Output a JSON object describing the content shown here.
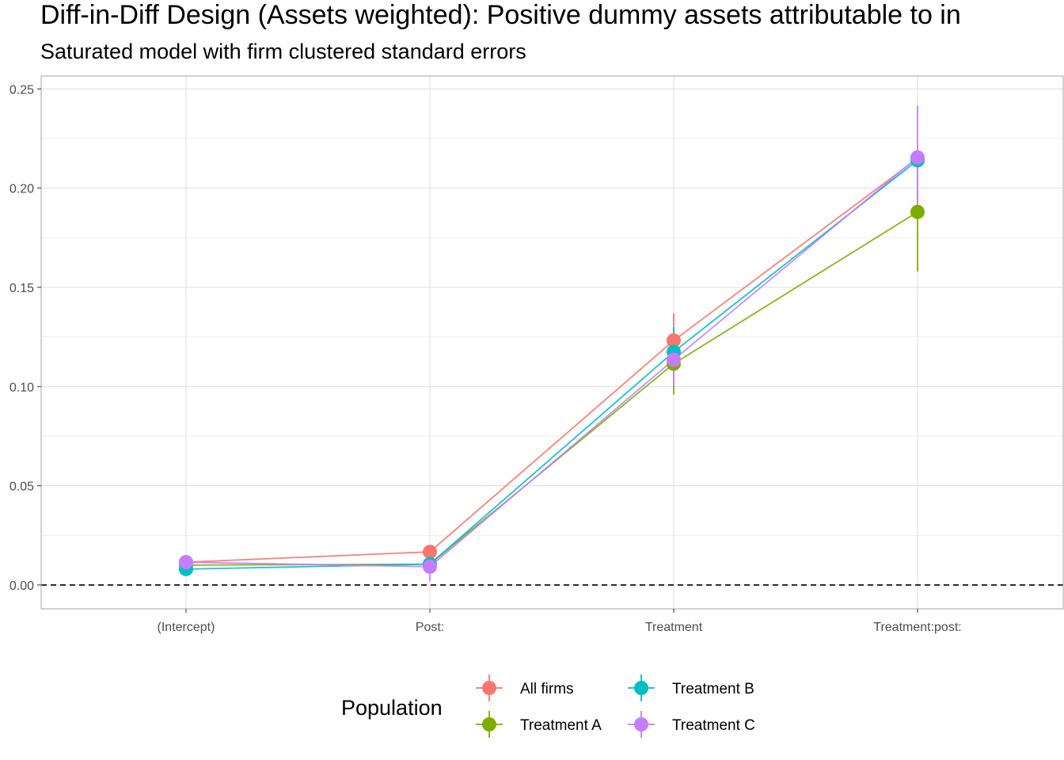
{
  "chart_data": {
    "type": "line",
    "title": "Diff-in-Diff Design (Assets weighted): Positive dummy assets attributable to in",
    "subtitle": "Saturated model with firm clustered standard errors",
    "xlabel": "",
    "ylabel": "",
    "categories": [
      "(Intercept)",
      "Post:",
      "Treatment",
      "Treatment:post:"
    ],
    "ylim": [
      -0.012,
      0.2565
    ],
    "yticks": [
      0.0,
      0.05,
      0.1,
      0.15,
      0.2,
      0.25
    ],
    "ytick_labels": [
      "0.00",
      "0.05",
      "0.10",
      "0.15",
      "0.20",
      "0.25"
    ],
    "reference_line": 0.0,
    "grid": true,
    "legend": {
      "title": "Population",
      "placement": "bottom"
    },
    "series": [
      {
        "name": "All firms",
        "color": "#F8766D",
        "values": [
          0.0115,
          0.0167,
          0.1232,
          0.215
        ],
        "lower": [
          0.011,
          0.015,
          0.11,
          0.214
        ],
        "upper": [
          0.012,
          0.0185,
          0.137,
          0.216
        ]
      },
      {
        "name": "Treatment A",
        "color": "#7CAE00",
        "values": [
          0.01,
          0.0105,
          0.1115,
          0.188
        ],
        "lower": [
          0.0095,
          0.009,
          0.096,
          0.158
        ],
        "upper": [
          0.0105,
          0.012,
          0.126,
          0.218
        ]
      },
      {
        "name": "Treatment B",
        "color": "#00BFC4",
        "values": [
          0.008,
          0.0105,
          0.1175,
          0.214
        ],
        "lower": [
          0.0075,
          0.009,
          0.105,
          0.213
        ],
        "upper": [
          0.0085,
          0.012,
          0.13,
          0.215
        ]
      },
      {
        "name": "Treatment C",
        "color": "#C77CFF",
        "values": [
          0.0115,
          0.0092,
          0.1135,
          0.2155
        ],
        "lower": [
          0.011,
          0.002,
          0.1,
          0.19
        ],
        "upper": [
          0.012,
          0.0165,
          0.127,
          0.2415
        ]
      }
    ]
  }
}
